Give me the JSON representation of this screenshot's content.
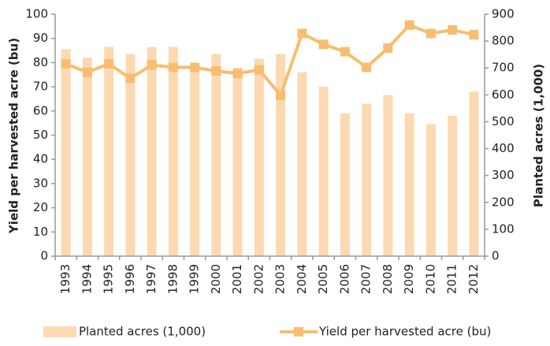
{
  "chart_data": {
    "type": "bar_line",
    "y_label": "Yield per harvested acre (bu)",
    "y2_label": "Planted acres (1,000)",
    "categories": [
      "1993",
      "1994",
      "1995",
      "1996",
      "1997",
      "1998",
      "1999",
      "2000",
      "2001",
      "2002",
      "2003",
      "2004",
      "2005",
      "2006",
      "2007",
      "2008",
      "2009",
      "2010",
      "2011",
      "2012"
    ],
    "series": [
      {
        "name": "Planted acres (1,000)",
        "type": "bar",
        "axis": "y2",
        "color": "#fdd9b2",
        "values": [
          770,
          738,
          778,
          752,
          778,
          778,
          700,
          752,
          700,
          734,
          752,
          684,
          630,
          531,
          567,
          599,
          531,
          491,
          522,
          612
        ]
      },
      {
        "name": "Yield per harvested acre (bu)",
        "type": "line",
        "axis": "y",
        "color": "#f8bd70",
        "values": [
          79.5,
          76,
          79.5,
          73.5,
          79,
          78,
          78,
          76.5,
          75.5,
          77,
          66.5,
          92,
          87.5,
          84.5,
          78,
          86,
          95.5,
          92,
          93.5,
          91.5
        ]
      }
    ],
    "ylim": [
      0,
      100
    ],
    "yticks": [
      0,
      10,
      20,
      30,
      40,
      50,
      60,
      70,
      80,
      90,
      100
    ],
    "y2lim": [
      0,
      900
    ],
    "y2ticks": [
      0,
      100,
      200,
      300,
      400,
      500,
      600,
      700,
      800,
      900
    ],
    "grid": false,
    "legend": "bottom"
  }
}
